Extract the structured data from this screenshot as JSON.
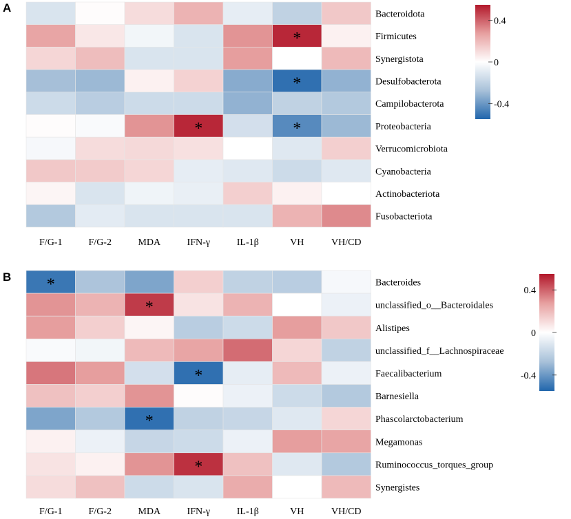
{
  "chart_data": [
    {
      "type": "heatmap",
      "panel_label": "A",
      "columns": [
        "F/G-1",
        "F/G-2",
        "MDA",
        "IFN-γ",
        "IL-1β",
        "VH",
        "VH/CD"
      ],
      "rows": [
        "Bacteroidota",
        "Firmicutes",
        "Synergistota",
        "Desulfobacterota",
        "Campilobacterota",
        "Proteobacteria",
        "Verrucomicrobiota",
        "Cyanobacteria",
        "Actinobacteriota",
        "Fusobacteriota"
      ],
      "values": [
        [
          -0.12,
          0.01,
          0.1,
          0.22,
          -0.08,
          -0.2,
          0.16
        ],
        [
          0.26,
          0.07,
          -0.04,
          -0.12,
          0.3,
          0.52,
          0.04
        ],
        [
          0.12,
          0.19,
          -0.12,
          -0.12,
          0.28,
          0.0,
          0.2
        ],
        [
          -0.28,
          -0.3,
          0.04,
          0.13,
          -0.34,
          -0.52,
          -0.32
        ],
        [
          -0.16,
          -0.22,
          -0.16,
          -0.16,
          -0.32,
          -0.2,
          -0.24
        ],
        [
          0.01,
          -0.02,
          0.3,
          0.52,
          -0.14,
          -0.44,
          -0.3
        ],
        [
          -0.03,
          0.1,
          0.11,
          0.09,
          0.0,
          -0.1,
          0.14
        ],
        [
          0.16,
          0.15,
          0.12,
          -0.08,
          -0.1,
          -0.16,
          -0.1
        ],
        [
          0.03,
          -0.12,
          -0.05,
          -0.07,
          0.14,
          0.04,
          0.0
        ],
        [
          -0.24,
          -0.09,
          -0.12,
          -0.12,
          -0.12,
          0.22,
          0.32
        ]
      ],
      "significant": [
        [
          1,
          5
        ],
        [
          3,
          5
        ],
        [
          5,
          3
        ],
        [
          5,
          5
        ]
      ],
      "legend": {
        "ticks": [
          0.4,
          0,
          -0.4
        ],
        "tick_labels": [
          "0.4",
          "0",
          "-0.4"
        ],
        "range": [
          -0.55,
          0.55
        ]
      }
    },
    {
      "type": "heatmap",
      "panel_label": "B",
      "columns": [
        "F/G-1",
        "F/G-2",
        "MDA",
        "IFN-γ",
        "IL-1β",
        "VH",
        "VH/CD"
      ],
      "rows": [
        "Bacteroides",
        "unclassified_o__Bacteroidales",
        "Alistipes",
        "unclassified_f__Lachnospiraceae",
        "Faecalibacterium",
        "Barnesiella",
        "Phascolarctobacterium",
        "Megamonas",
        "Ruminococcus_torques_group",
        "Synergistes"
      ],
      "values": [
        [
          -0.5,
          -0.26,
          -0.36,
          0.14,
          -0.2,
          -0.22,
          -0.03
        ],
        [
          0.3,
          0.22,
          0.48,
          0.08,
          0.22,
          0.0,
          -0.06
        ],
        [
          0.28,
          0.14,
          0.03,
          -0.22,
          -0.16,
          0.28,
          0.16
        ],
        [
          -0.02,
          -0.04,
          0.2,
          0.26,
          0.38,
          0.12,
          -0.2
        ],
        [
          0.36,
          0.28,
          -0.14,
          -0.52,
          -0.08,
          0.2,
          -0.06
        ],
        [
          0.18,
          0.14,
          0.3,
          0.01,
          -0.06,
          -0.16,
          -0.24
        ],
        [
          -0.36,
          -0.24,
          -0.52,
          -0.2,
          -0.18,
          -0.1,
          0.12
        ],
        [
          0.04,
          -0.06,
          -0.18,
          -0.16,
          -0.06,
          0.28,
          0.26
        ],
        [
          0.08,
          0.04,
          0.3,
          0.5,
          0.18,
          -0.1,
          -0.24
        ],
        [
          0.1,
          0.18,
          -0.16,
          -0.12,
          0.24,
          0.0,
          0.2
        ]
      ],
      "significant": [
        [
          0,
          0
        ],
        [
          1,
          2
        ],
        [
          4,
          3
        ],
        [
          6,
          2
        ],
        [
          8,
          3
        ]
      ],
      "legend": {
        "ticks": [
          0.4,
          0,
          -0.4
        ],
        "tick_labels": [
          "0.4",
          "0",
          "-0.4"
        ],
        "range": [
          -0.55,
          0.55
        ]
      }
    }
  ],
  "colors": {
    "high": "#b2182b",
    "mid": "#ffffff",
    "low": "#2166ac",
    "star": "#000000",
    "axis_text": "#000000"
  },
  "star_symbol": "*"
}
